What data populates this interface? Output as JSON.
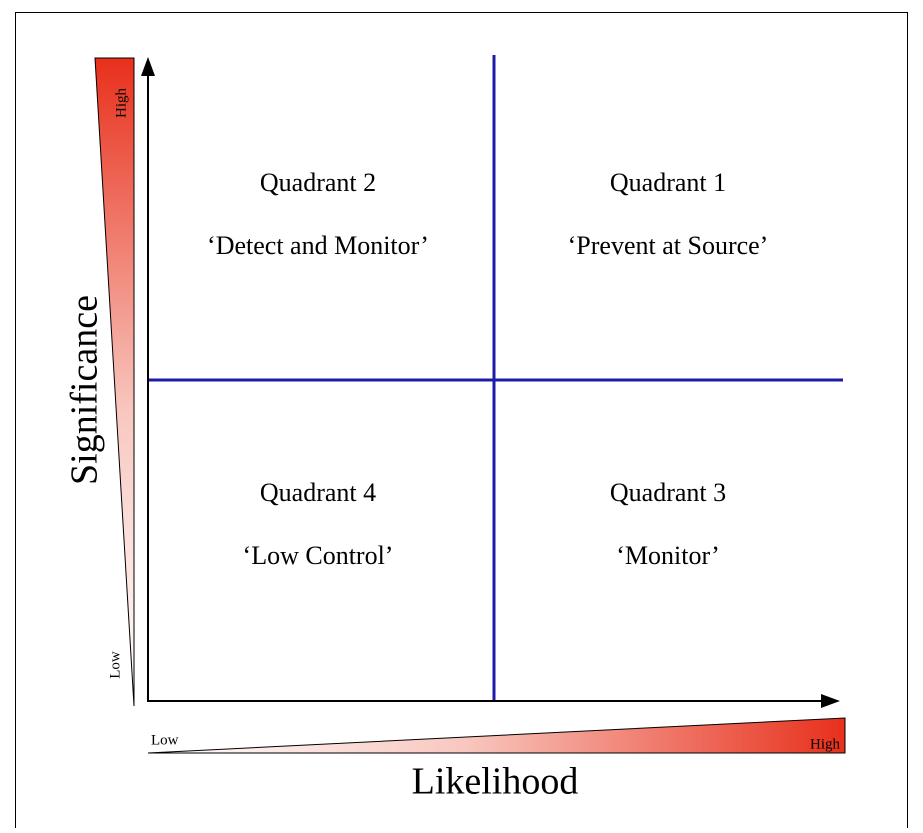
{
  "axes": {
    "y": {
      "label": "Significance",
      "low": "Low",
      "high": "High"
    },
    "x": {
      "label": "Likelihood",
      "low": "Low",
      "high": "High"
    }
  },
  "quadrants": [
    {
      "title": "Quadrant 1",
      "label": "‘Prevent at Source’"
    },
    {
      "title": "Quadrant 2",
      "label": "‘Detect and Monitor’"
    },
    {
      "title": "Quadrant 3",
      "label": "‘Monitor’"
    },
    {
      "title": "Quadrant 4",
      "label": "‘Low Control’"
    }
  ]
}
